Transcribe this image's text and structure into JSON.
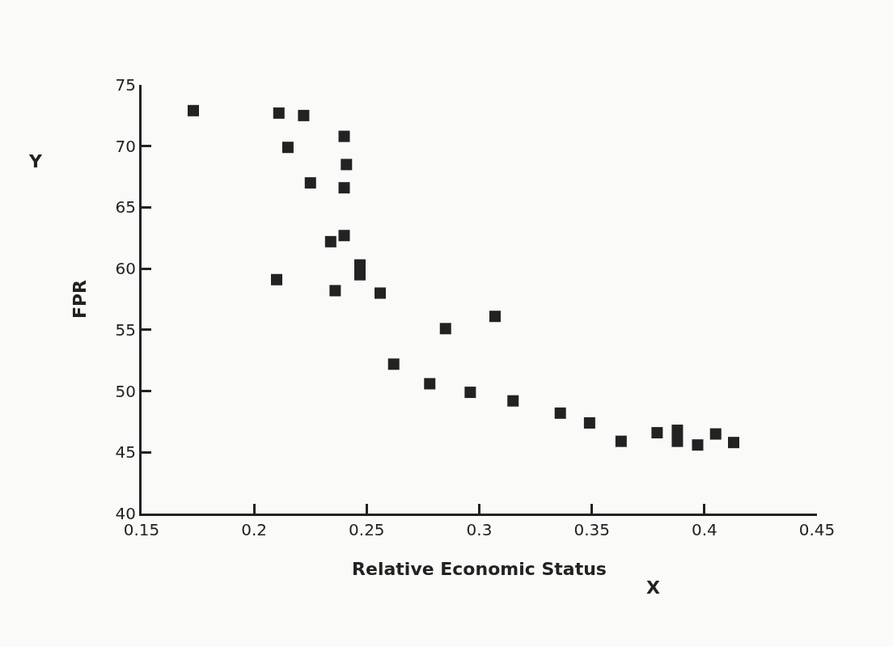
{
  "chart_data": {
    "type": "scatter",
    "xlabel": "Relative Economic Status",
    "ylabel": "FPR",
    "annotations": [
      "Y",
      "X"
    ],
    "x": [
      0.173,
      0.211,
      0.222,
      0.24,
      0.215,
      0.241,
      0.225,
      0.24,
      0.234,
      0.24,
      0.247,
      0.247,
      0.21,
      0.236,
      0.256,
      0.285,
      0.307,
      0.262,
      0.278,
      0.296,
      0.315,
      0.336,
      0.349,
      0.363,
      0.379,
      0.388,
      0.388,
      0.397,
      0.405,
      0.413
    ],
    "series": [
      {
        "color": "#222222",
        "values": [
          72.9,
          72.7,
          72.5,
          70.8,
          69.9,
          68.5,
          67.0,
          66.6,
          62.2,
          62.7,
          60.3,
          59.5,
          59.1,
          58.2,
          58.0,
          55.1,
          56.1,
          52.2,
          50.6,
          49.9,
          49.2,
          48.2,
          47.4,
          45.9,
          46.6,
          46.8,
          45.9,
          45.6,
          46.5,
          45.8
        ]
      }
    ],
    "xlim": [
      0.15,
      0.45
    ],
    "xticks": [
      0.15,
      0.2,
      0.25,
      0.3,
      0.35,
      0.4,
      0.45
    ],
    "ylim": [
      40,
      75
    ],
    "yticks": [
      40,
      45,
      50,
      55,
      60,
      65,
      70,
      75
    ],
    "grid": false,
    "marker": "square"
  }
}
